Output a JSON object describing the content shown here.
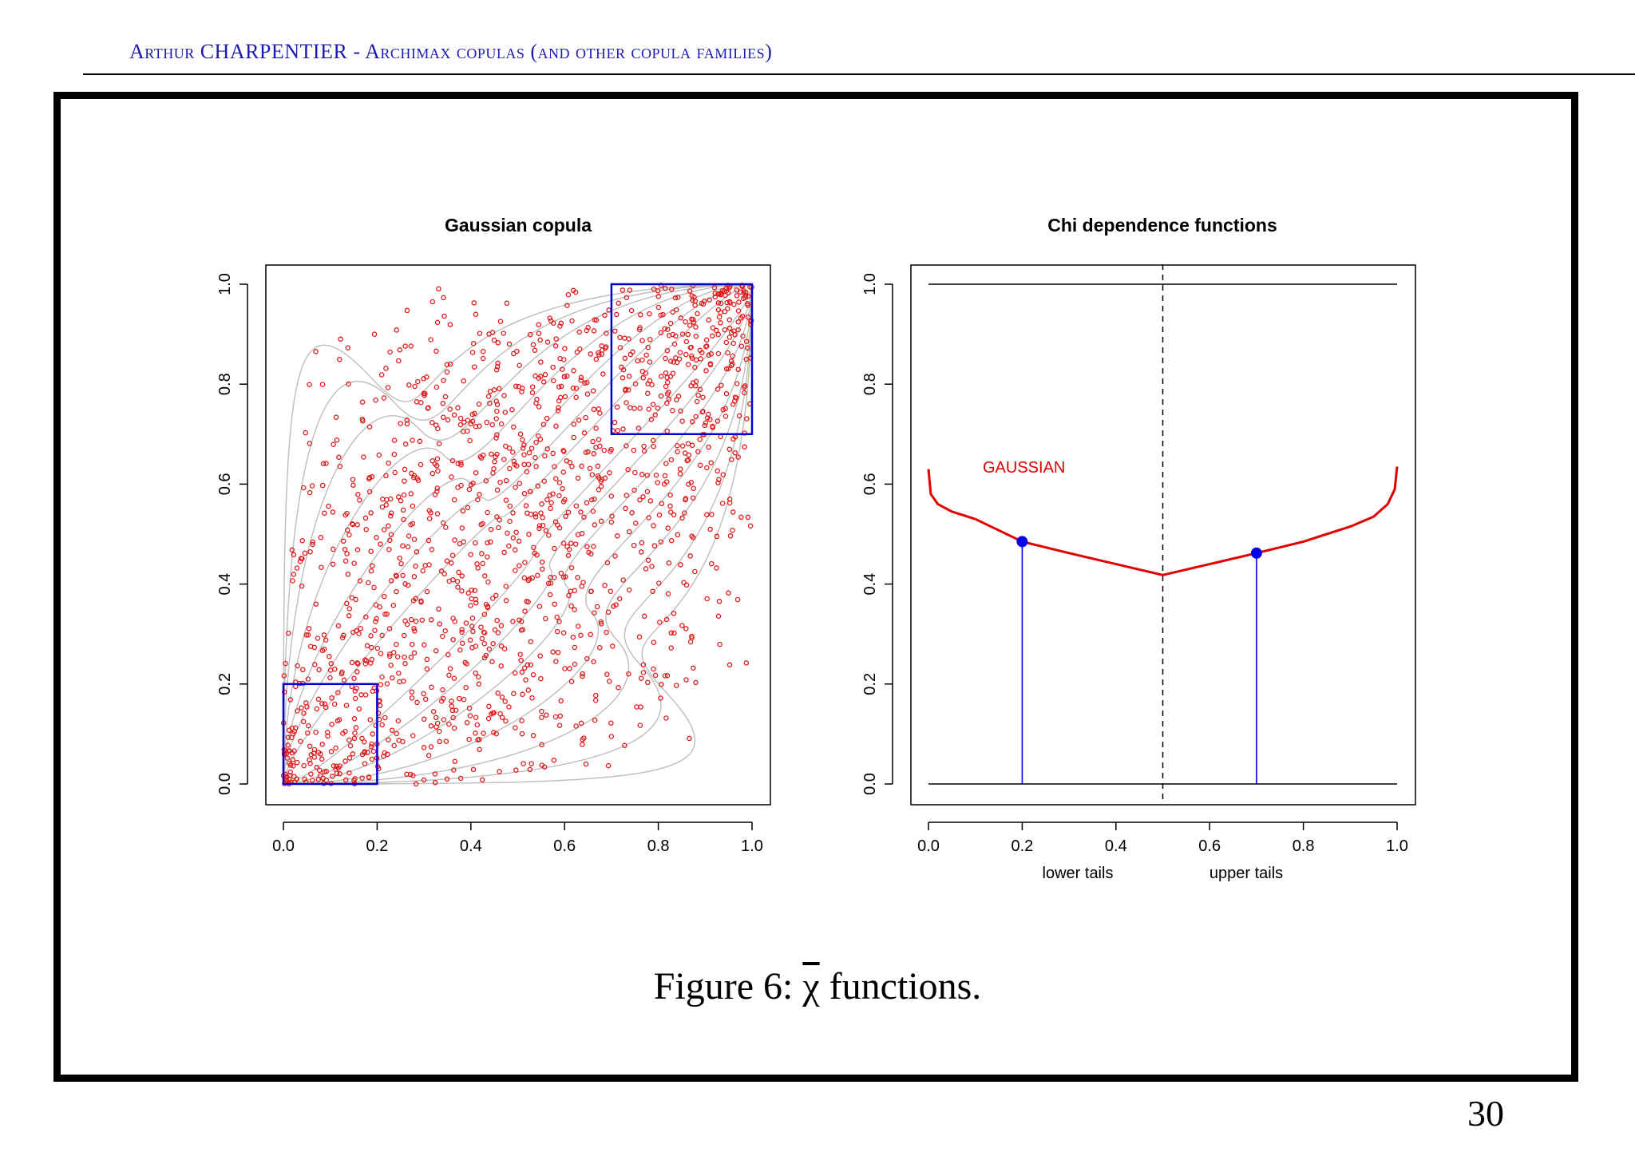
{
  "header": {
    "author": "Arthur CHARPENTIER",
    "separator": " - ",
    "title": "Archimax copulas (and other copula families)"
  },
  "caption": {
    "prefix": "Figure 6: ",
    "symbol": "χ",
    "suffix": " functions."
  },
  "page_number": "30",
  "colors": {
    "header": "#1b1bb0",
    "points": "#e31a1c",
    "boxes": "#0000cc",
    "curves": "#bdbdbd",
    "gaussian_line": "#e00000",
    "markers": "#0000ee"
  },
  "chart_data": [
    {
      "type": "scatter",
      "title": "Gaussian copula",
      "xlabel": "",
      "ylabel": "",
      "xlim": [
        0,
        1
      ],
      "ylim": [
        0,
        1
      ],
      "xticks": [
        "0.0",
        "0.2",
        "0.4",
        "0.6",
        "0.8",
        "1.0"
      ],
      "yticks": [
        "0.0",
        "0.2",
        "0.4",
        "0.6",
        "0.8",
        "1.0"
      ],
      "n_points": 1500,
      "correlation": 0.6,
      "highlight_boxes": [
        {
          "name": "lower-tail-box",
          "x": [
            0,
            0.2
          ],
          "y": [
            0,
            0.2
          ]
        },
        {
          "name": "upper-tail-box",
          "x": [
            0.7,
            1.0
          ],
          "y": [
            0.7,
            1.0
          ]
        }
      ],
      "level_curves": "gray level curves of copula density"
    },
    {
      "type": "line",
      "title": "Chi dependence functions",
      "xlabel_left": "lower tails",
      "xlabel_right": "upper tails",
      "xlim": [
        0,
        1
      ],
      "ylim": [
        0,
        1
      ],
      "xticks": [
        "0.0",
        "0.2",
        "0.4",
        "0.6",
        "0.8",
        "1.0"
      ],
      "yticks": [
        "0.0",
        "0.2",
        "0.4",
        "0.6",
        "0.8",
        "1.0"
      ],
      "hlines": [
        0,
        1
      ],
      "vline_dashed": 0.5,
      "series": [
        {
          "name": "GAUSSIAN",
          "x": [
            0.0,
            0.005,
            0.02,
            0.05,
            0.1,
            0.2,
            0.3,
            0.4,
            0.5,
            0.6,
            0.7,
            0.8,
            0.9,
            0.95,
            0.98,
            0.995,
            1.0
          ],
          "y": [
            0.63,
            0.58,
            0.56,
            0.545,
            0.53,
            0.485,
            0.462,
            0.44,
            0.418,
            0.44,
            0.462,
            0.485,
            0.515,
            0.535,
            0.56,
            0.59,
            0.635
          ]
        }
      ],
      "markers": [
        {
          "name": "lower-marker",
          "x": 0.2,
          "y": 0.485
        },
        {
          "name": "upper-marker",
          "x": 0.7,
          "y": 0.462
        }
      ]
    }
  ]
}
